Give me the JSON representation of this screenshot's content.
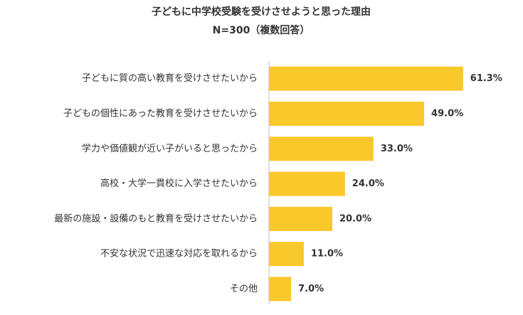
{
  "chart_data": {
    "type": "bar",
    "orientation": "horizontal",
    "title": "子どもに中学校受験を受けさせようと思った理由",
    "subtitle": "N=300（複数回答）",
    "categories": [
      "子どもに質の高い教育を受けさせたいから",
      "子どもの個性にあった教育を受けさせたいから",
      "学力や価値観が近い子がいると思ったから",
      "高校・大学一貫校に入学させたいから",
      "最新の施設・設備のもと教育を受けさせたいから",
      "不安な状況で迅速な対応を取れるから",
      "その他"
    ],
    "values": [
      61.3,
      49.0,
      33.0,
      24.0,
      20.0,
      11.0,
      7.0
    ],
    "value_labels": [
      "61.3%",
      "49.0%",
      "33.0%",
      "24.0%",
      "20.0%",
      "11.0%",
      "7.0%"
    ],
    "color": "#f9c82b"
  }
}
